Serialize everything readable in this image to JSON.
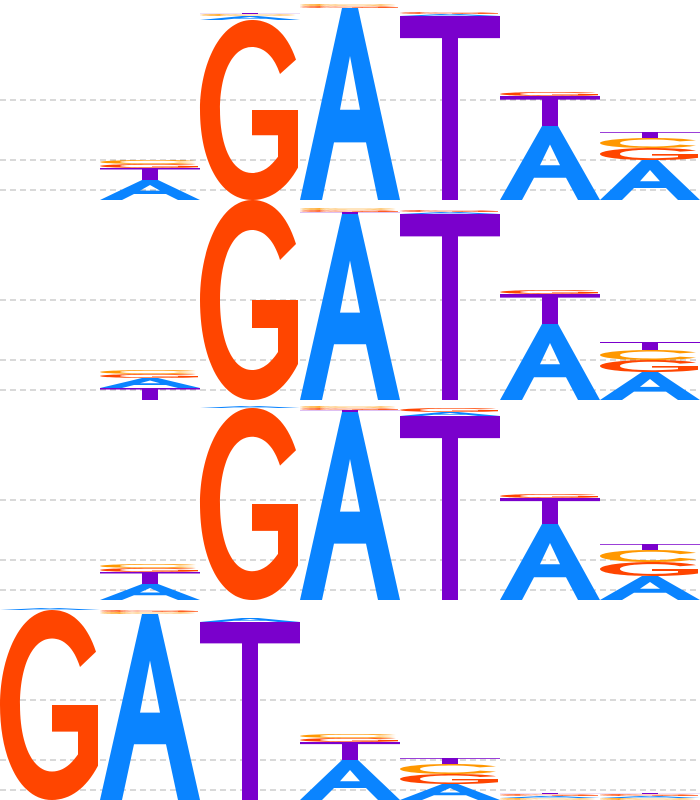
{
  "colors": {
    "A": "#0a84ff",
    "C": "#ff9800",
    "G": "#ff4500",
    "T": "#7a00cc",
    "gridline": "#b3b3b3",
    "background": "#ffffff"
  },
  "chart_data": {
    "type": "sequence-logo",
    "alphabet": [
      "A",
      "C",
      "G",
      "T"
    ],
    "max_height": 1.0,
    "gridlines": [
      0.5,
      0.2,
      0.05
    ],
    "rows": [
      {
        "positions": [
          [],
          [
            [
              "A",
              0.1
            ],
            [
              "T",
              0.06
            ],
            [
              "G",
              0.02
            ],
            [
              "C",
              0.02
            ]
          ],
          [
            [
              "G",
              0.9
            ],
            [
              "A",
              0.02
            ],
            [
              "C",
              0.01
            ],
            [
              "T",
              0.005
            ]
          ],
          [
            [
              "A",
              0.96
            ],
            [
              "G",
              0.01
            ],
            [
              "C",
              0.01
            ]
          ],
          [
            [
              "T",
              0.92
            ],
            [
              "A",
              0.01
            ],
            [
              "G",
              0.01
            ]
          ],
          [
            [
              "A",
              0.37
            ],
            [
              "T",
              0.15
            ],
            [
              "G",
              0.02
            ]
          ],
          [
            [
              "A",
              0.2
            ],
            [
              "G",
              0.06
            ],
            [
              "C",
              0.05
            ],
            [
              "T",
              0.03
            ]
          ]
        ]
      },
      {
        "positions": [
          [],
          [
            [
              "A",
              0.05
            ],
            [
              "T",
              0.06
            ],
            [
              "G",
              0.02
            ],
            [
              "C",
              0.02
            ]
          ],
          [
            [
              "G",
              1.0
            ]
          ],
          [
            [
              "A",
              0.93
            ],
            [
              "T",
              0.01
            ],
            [
              "G",
              0.01
            ],
            [
              "C",
              0.01
            ]
          ],
          [
            [
              "T",
              0.93
            ],
            [
              "A",
              0.01
            ],
            [
              "G",
              0.01
            ]
          ],
          [
            [
              "A",
              0.38
            ],
            [
              "T",
              0.15
            ],
            [
              "G",
              0.02
            ]
          ],
          [
            [
              "A",
              0.14
            ],
            [
              "G",
              0.06
            ],
            [
              "C",
              0.05
            ],
            [
              "T",
              0.04
            ]
          ]
        ]
      },
      {
        "positions": [
          [],
          [
            [
              "A",
              0.08
            ],
            [
              "T",
              0.06
            ],
            [
              "G",
              0.02
            ],
            [
              "C",
              0.02
            ]
          ],
          [
            [
              "G",
              0.96
            ],
            [
              "A",
              0.01
            ]
          ],
          [
            [
              "A",
              0.94
            ],
            [
              "T",
              0.01
            ],
            [
              "G",
              0.01
            ],
            [
              "C",
              0.01
            ]
          ],
          [
            [
              "T",
              0.92
            ],
            [
              "A",
              0.02
            ],
            [
              "G",
              0.02
            ]
          ],
          [
            [
              "A",
              0.38
            ],
            [
              "T",
              0.13
            ],
            [
              "G",
              0.02
            ]
          ],
          [
            [
              "A",
              0.12
            ],
            [
              "G",
              0.07
            ],
            [
              "C",
              0.06
            ],
            [
              "T",
              0.03
            ]
          ]
        ]
      },
      {
        "positions": [
          [
            [
              "G",
              0.95
            ],
            [
              "A",
              0.01
            ]
          ],
          [
            [
              "A",
              0.93
            ],
            [
              "C",
              0.01
            ],
            [
              "G",
              0.01
            ]
          ],
          [
            [
              "T",
              0.89
            ],
            [
              "A",
              0.02
            ]
          ],
          [
            [
              "A",
              0.2
            ],
            [
              "T",
              0.09
            ],
            [
              "G",
              0.02
            ],
            [
              "C",
              0.02
            ]
          ],
          [
            [
              "A",
              0.08
            ],
            [
              "G",
              0.05
            ],
            [
              "C",
              0.05
            ],
            [
              "T",
              0.03
            ]
          ],
          [
            [
              "C",
              0.01
            ],
            [
              "A",
              0.01
            ],
            [
              "G",
              0.01
            ],
            [
              "T",
              0.005
            ]
          ],
          [
            [
              "C",
              0.01
            ],
            [
              "A",
              0.01
            ],
            [
              "G",
              0.01
            ],
            [
              "T",
              0.005
            ]
          ]
        ]
      }
    ]
  }
}
